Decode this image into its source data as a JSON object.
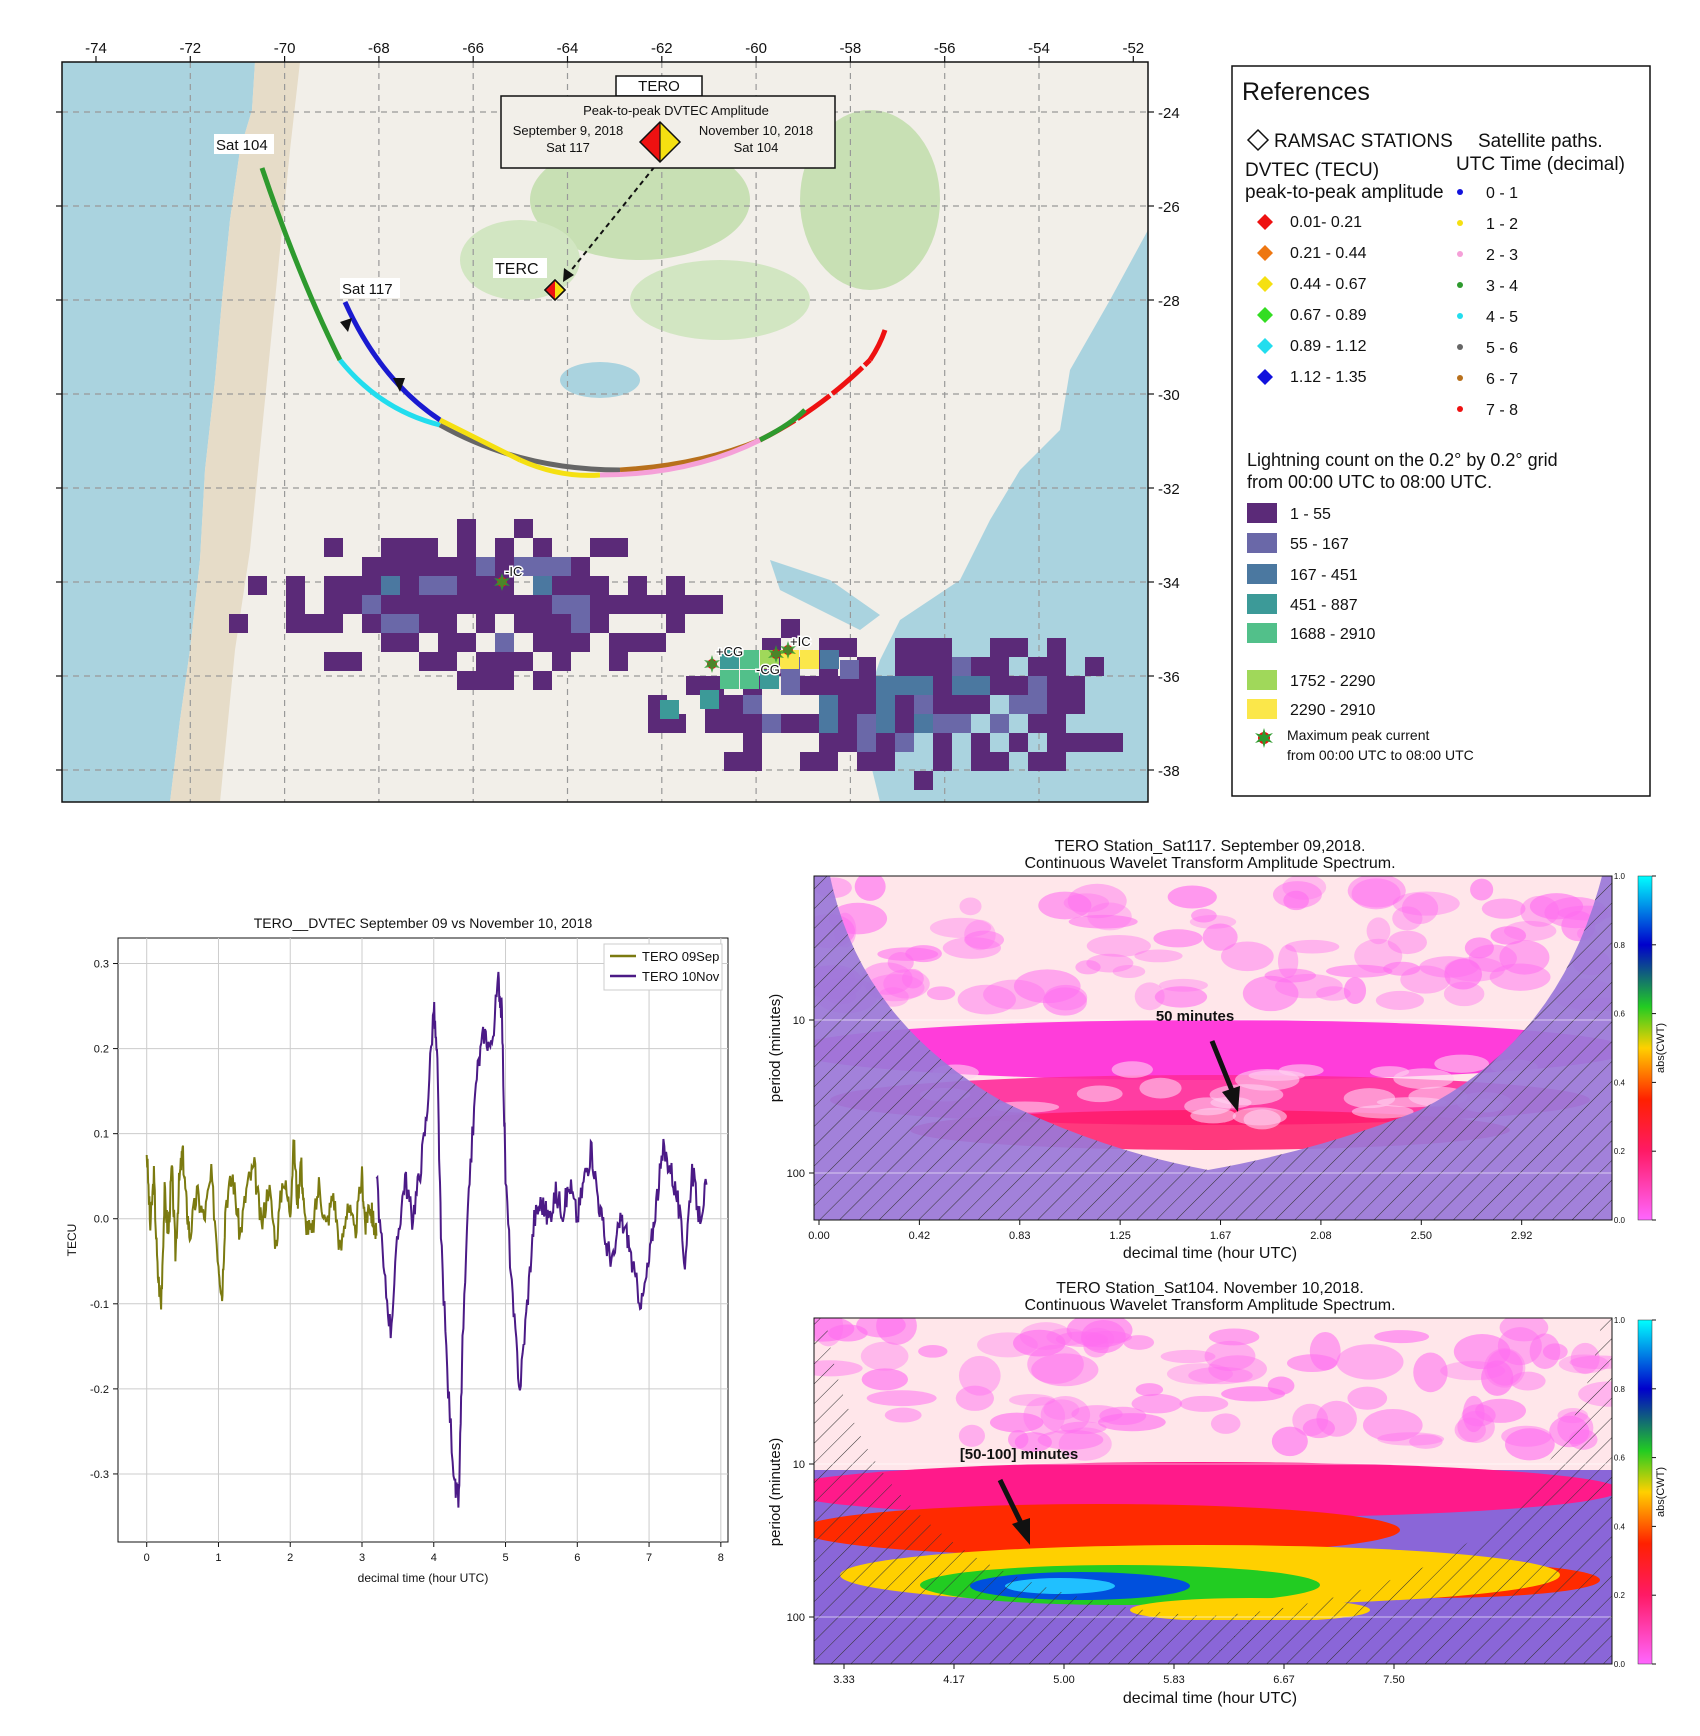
{
  "map": {
    "top_ticks": [
      "-74",
      "-72",
      "-70",
      "-68",
      "-66",
      "-64",
      "-62",
      "-60",
      "-58",
      "-56",
      "-54",
      "-52"
    ],
    "right_ticks": [
      "-24",
      "-26",
      "-28",
      "-30",
      "-32",
      "-34",
      "-36",
      "-38"
    ],
    "station_box_title": "TERO",
    "inset_title": "Peak-to-peak DVTEC Amplitude",
    "inset_left_date": "September 9, 2018",
    "inset_left_sat": "Sat 117",
    "inset_right_date": "November 10, 2018",
    "inset_right_sat": "Sat 104",
    "station_label": "TERC",
    "sat104_label": "Sat 104",
    "sat117_label": "Sat 117",
    "flash_labels": [
      "-IC",
      "+CG",
      "+IC",
      "-CG"
    ],
    "colors": {
      "sea": "#aad3df",
      "land": "#f2efe9",
      "forest": "#c8e0b4",
      "sat104": "#2e9a2e",
      "sat117": "#1a1ad0"
    }
  },
  "references": {
    "title": "References",
    "ramsac": "RAMSAC STATIONS",
    "sat_paths_1": "Satellite paths.",
    "sat_paths_2": "UTC Time (decimal)",
    "dvtec_1": "DVTEC (TECU)",
    "dvtec_2": "peak-to-peak amplitude",
    "amp_items": [
      {
        "label": "0.01- 0.21",
        "color": "#ee1111"
      },
      {
        "label": "0.21 - 0.44",
        "color": "#ee7711"
      },
      {
        "label": "0.44 - 0.67",
        "color": "#f5e011"
      },
      {
        "label": "0.67 - 0.89",
        "color": "#33dd22"
      },
      {
        "label": "0.89 - 1.12",
        "color": "#22ddee"
      },
      {
        "label": "1.12 - 1.35",
        "color": "#1111dd"
      }
    ],
    "utc_items": [
      {
        "label": "0 - 1",
        "color": "#1111dd"
      },
      {
        "label": "1 - 2",
        "color": "#f5e011"
      },
      {
        "label": "2 - 3",
        "color": "#f5a0d8"
      },
      {
        "label": "3 - 4",
        "color": "#2e9a2e"
      },
      {
        "label": "4 - 5",
        "color": "#22ddee"
      },
      {
        "label": "5 - 6",
        "color": "#666666"
      },
      {
        "label": "6 - 7",
        "color": "#b8701c"
      },
      {
        "label": "7 - 8",
        "color": "#ee1111"
      }
    ],
    "lightning_1": "Lightning count on the 0.2° by  0.2° grid",
    "lightning_2": "from 00:00 UTC to  08:00 UTC.",
    "lightning_items": [
      {
        "label": "1 - 55",
        "color": "#5b2a78"
      },
      {
        "label": "55 - 167",
        "color": "#6a68a8"
      },
      {
        "label": "167 - 451",
        "color": "#4b78a0"
      },
      {
        "label": "451 - 887",
        "color": "#3c9a98"
      },
      {
        "label": "1688 - 2910",
        "color": "#52c08a"
      },
      {
        "label": "1752 - 2290",
        "color": "#a0d85a"
      },
      {
        "label": "2290 - 2910",
        "color": "#fbe74a"
      }
    ],
    "peak_1": "Maximum peak current",
    "peak_2": "from 00:00 UTC to 08:00 UTC"
  },
  "chart_data": [
    {
      "type": "line",
      "title": "TERO__DVTEC September 09 vs November 10, 2018",
      "xlabel": "decimal time (hour UTC)",
      "ylabel": "TECU",
      "xlim": [
        -0.4,
        8.1
      ],
      "ylim": [
        -0.38,
        0.33
      ],
      "xticks": [
        0,
        1,
        2,
        3,
        4,
        5,
        6,
        7,
        8
      ],
      "yticks": [
        -0.3,
        -0.2,
        -0.1,
        0.0,
        0.1,
        0.2,
        0.3
      ],
      "ytick_labels": [
        "-0.3",
        "-0.2",
        "-0.1",
        "0.0",
        "0.1",
        "0.2",
        "0.3"
      ],
      "grid": true,
      "legend": "top-right",
      "series": [
        {
          "name": "TERO 09Sep",
          "color": "#7b7a10",
          "x": [
            0.0,
            0.05,
            0.1,
            0.15,
            0.2,
            0.25,
            0.3,
            0.35,
            0.4,
            0.45,
            0.5,
            0.55,
            0.6,
            0.7,
            0.8,
            0.9,
            1.0,
            1.05,
            1.1,
            1.2,
            1.3,
            1.4,
            1.5,
            1.6,
            1.7,
            1.8,
            1.9,
            2.0,
            2.05,
            2.1,
            2.15,
            2.2,
            2.3,
            2.4,
            2.5,
            2.6,
            2.7,
            2.8,
            2.9,
            3.0,
            3.05,
            3.1,
            3.15,
            3.2
          ],
          "values": [
            0.08,
            -0.01,
            0.05,
            -0.06,
            -0.1,
            0.03,
            -0.02,
            0.06,
            -0.04,
            0.04,
            0.08,
            0.02,
            -0.02,
            0.03,
            0.0,
            0.05,
            -0.05,
            -0.09,
            0.02,
            0.05,
            -0.02,
            0.04,
            0.06,
            -0.01,
            0.04,
            -0.03,
            0.05,
            0.01,
            0.09,
            0.02,
            0.07,
            0.0,
            -0.02,
            0.04,
            -0.01,
            0.03,
            -0.04,
            0.02,
            -0.02,
            0.05,
            -0.01,
            0.02,
            0.0,
            -0.02
          ]
        },
        {
          "name": "TERO 10Nov",
          "color": "#4b1a86",
          "x": [
            3.2,
            3.3,
            3.4,
            3.5,
            3.6,
            3.7,
            3.8,
            3.9,
            4.0,
            4.05,
            4.1,
            4.2,
            4.3,
            4.35,
            4.4,
            4.5,
            4.6,
            4.7,
            4.8,
            4.9,
            4.95,
            5.0,
            5.1,
            5.2,
            5.3,
            5.4,
            5.5,
            5.6,
            5.7,
            5.8,
            5.9,
            6.0,
            6.1,
            6.2,
            6.3,
            6.4,
            6.5,
            6.6,
            6.7,
            6.8,
            6.9,
            7.0,
            7.1,
            7.2,
            7.3,
            7.4,
            7.5,
            7.6,
            7.7,
            7.8
          ],
          "values": [
            0.05,
            -0.06,
            -0.13,
            -0.02,
            0.05,
            0.0,
            0.05,
            0.12,
            0.25,
            0.18,
            -0.02,
            -0.2,
            -0.32,
            -0.33,
            -0.15,
            0.05,
            0.17,
            0.22,
            0.2,
            0.28,
            0.24,
            0.05,
            -0.1,
            -0.2,
            -0.1,
            0.0,
            0.02,
            0.0,
            0.03,
            0.01,
            0.04,
            0.0,
            0.05,
            0.08,
            0.02,
            -0.03,
            -0.05,
            0.0,
            -0.02,
            -0.07,
            -0.1,
            -0.05,
            0.02,
            0.08,
            0.06,
            0.02,
            -0.05,
            0.06,
            0.0,
            0.04
          ]
        }
      ]
    },
    {
      "type": "heatmap",
      "title": "TERO Station_Sat117. September 09,2018.",
      "subtitle": "Continuous Wavelet Transform Amplitude Spectrum.",
      "xlabel": "decimal time (hour UTC)",
      "ylabel": "period (minutes)",
      "xticks": [
        "0.00",
        "0.42",
        "0.83",
        "1.25",
        "1.67",
        "2.08",
        "2.50",
        "2.92"
      ],
      "yticks": [
        "10",
        "100"
      ],
      "colorbar_ticks": [
        "0.0",
        "0.2",
        "0.4",
        "0.6",
        "0.8",
        "1.0"
      ],
      "colorbar_label": "abs(CWT)",
      "annotation": "50 minutes"
    },
    {
      "type": "heatmap",
      "title": "TERO Station_Sat104. November 10,2018.",
      "subtitle": "Continuous Wavelet Transform Amplitude Spectrum.",
      "xlabel": "decimal time (hour UTC)",
      "ylabel": "period (minutes)",
      "xticks": [
        "3.33",
        "4.17",
        "5.00",
        "5.83",
        "6.67",
        "7.50"
      ],
      "yticks": [
        "10",
        "100"
      ],
      "colorbar_ticks": [
        "0.0",
        "0.2",
        "0.4",
        "0.6",
        "0.8",
        "1.0"
      ],
      "colorbar_label": "abs(CWT)",
      "annotation": "[50-100] minutes"
    }
  ]
}
